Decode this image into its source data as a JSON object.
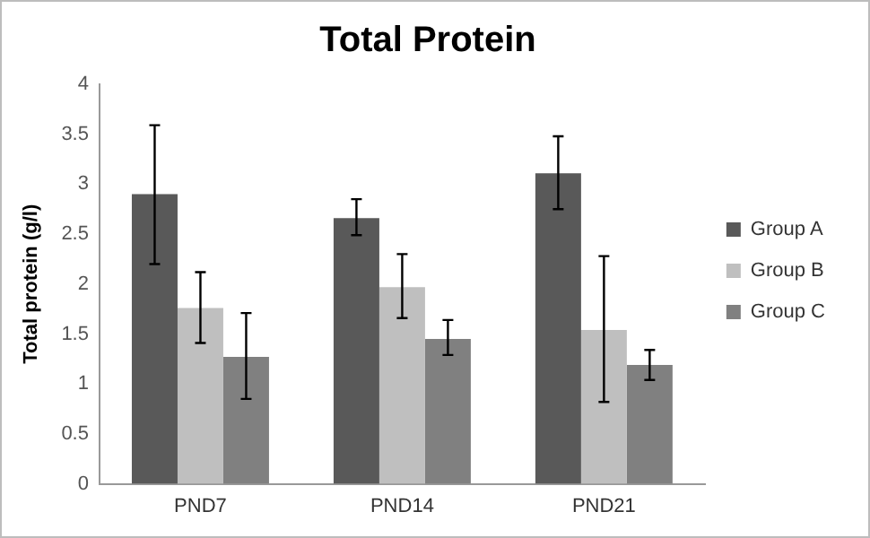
{
  "chart_data": {
    "type": "bar",
    "title": "Total Protein",
    "ylabel": "Total protein (g/l)",
    "categories": [
      "PND7",
      "PND14",
      "PND21"
    ],
    "series": [
      {
        "name": "Group A",
        "color": "#595959",
        "values": [
          2.9,
          2.66,
          3.11
        ],
        "errors": [
          [
            2.2,
            3.59
          ],
          [
            2.49,
            2.85
          ],
          [
            2.75,
            3.48
          ]
        ]
      },
      {
        "name": "Group B",
        "color": "#bfbfbf",
        "values": [
          1.76,
          1.97,
          1.54
        ],
        "errors": [
          [
            1.41,
            2.12
          ],
          [
            1.66,
            2.3
          ],
          [
            0.82,
            2.28
          ]
        ]
      },
      {
        "name": "Group C",
        "color": "#808080",
        "values": [
          1.27,
          1.45,
          1.19
        ],
        "errors": [
          [
            0.85,
            1.71
          ],
          [
            1.29,
            1.64
          ],
          [
            1.04,
            1.34
          ]
        ]
      }
    ],
    "ylim": [
      0,
      4
    ],
    "yticks": [
      0,
      0.5,
      1,
      1.5,
      2,
      2.5,
      3,
      3.5,
      4
    ],
    "grid": false,
    "legend": "right"
  }
}
